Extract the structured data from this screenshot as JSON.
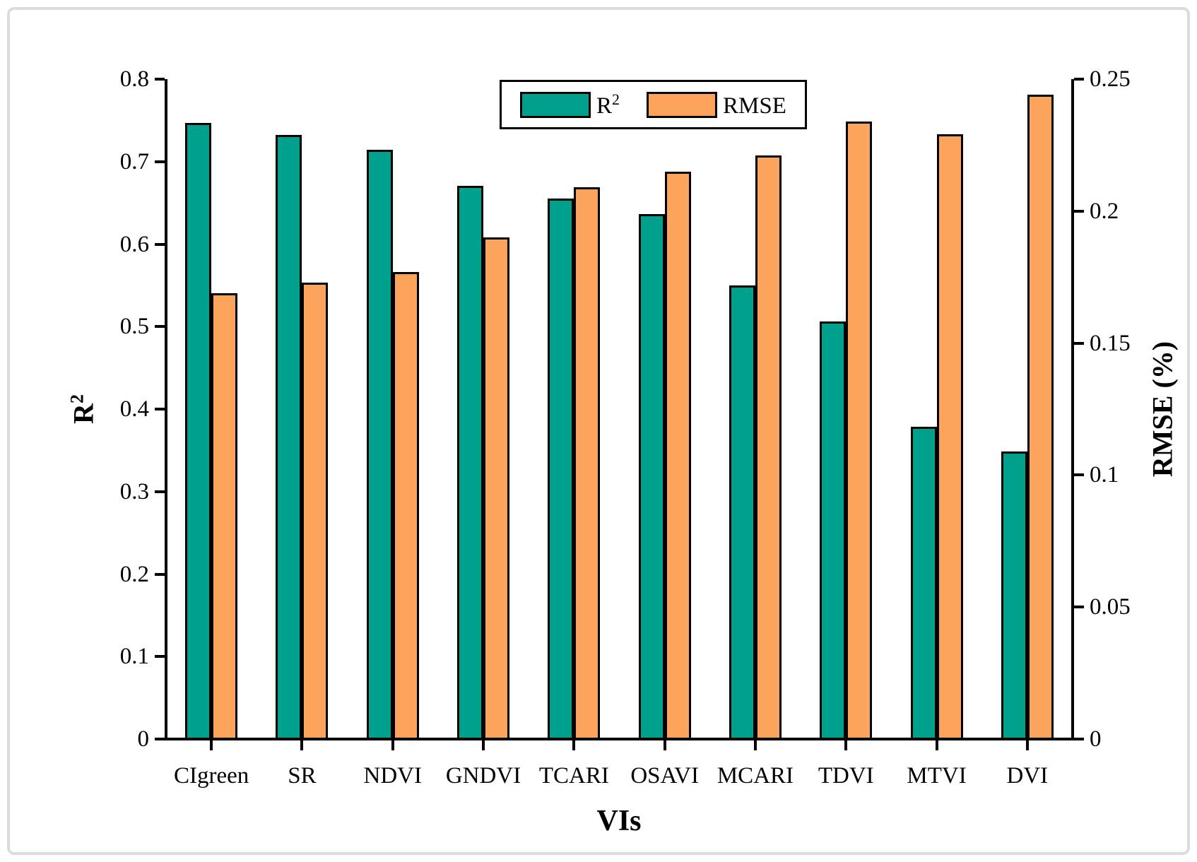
{
  "chart_data": {
    "type": "bar",
    "categories": [
      "CIgreen",
      "SR",
      "NDVI",
      "GNDVI",
      "TCARI",
      "OSAVI",
      "MCARI",
      "TDVI",
      "MTVI",
      "DVI"
    ],
    "series": [
      {
        "name": "R2",
        "legend_base": "R",
        "legend_sup": "2",
        "axis": "left",
        "color": "#00A18C",
        "values": [
          0.747,
          0.732,
          0.714,
          0.671,
          0.655,
          0.636,
          0.55,
          0.506,
          0.379,
          0.349
        ]
      },
      {
        "name": "RMSE",
        "legend_base": "RMSE",
        "legend_sup": "",
        "axis": "right",
        "color": "#FCA45C",
        "values": [
          0.169,
          0.173,
          0.177,
          0.19,
          0.209,
          0.215,
          0.221,
          0.234,
          0.229,
          0.244
        ]
      }
    ],
    "axes": {
      "left": {
        "title_base": "R",
        "title_sup": "2",
        "min": 0,
        "max": 0.8,
        "ticks": [
          0.8,
          0.7,
          0.6,
          0.5,
          0.4,
          0.3,
          0.2,
          0.1,
          0
        ],
        "tick_labels": [
          "0.8",
          "0.7",
          "0.6",
          "0.5",
          "0.4",
          "0.3",
          "0.2",
          "0.1",
          "0"
        ]
      },
      "right": {
        "title": "RMSE (%)",
        "min": 0,
        "max": 0.25,
        "ticks": [
          0.25,
          0.2,
          0.15,
          0.1,
          0.05,
          0
        ],
        "tick_labels": [
          "0.25",
          "0.2",
          "0.15",
          "0.1",
          "0.05",
          "0"
        ]
      },
      "x": {
        "title": "VIs"
      }
    },
    "legend_entries": [
      "R2",
      "RMSE"
    ],
    "grid": false,
    "background": "#FFFFFF",
    "bar_border_color": "#000000",
    "axis_color": "#000000",
    "frame_border_color": "#DCDCDC"
  }
}
